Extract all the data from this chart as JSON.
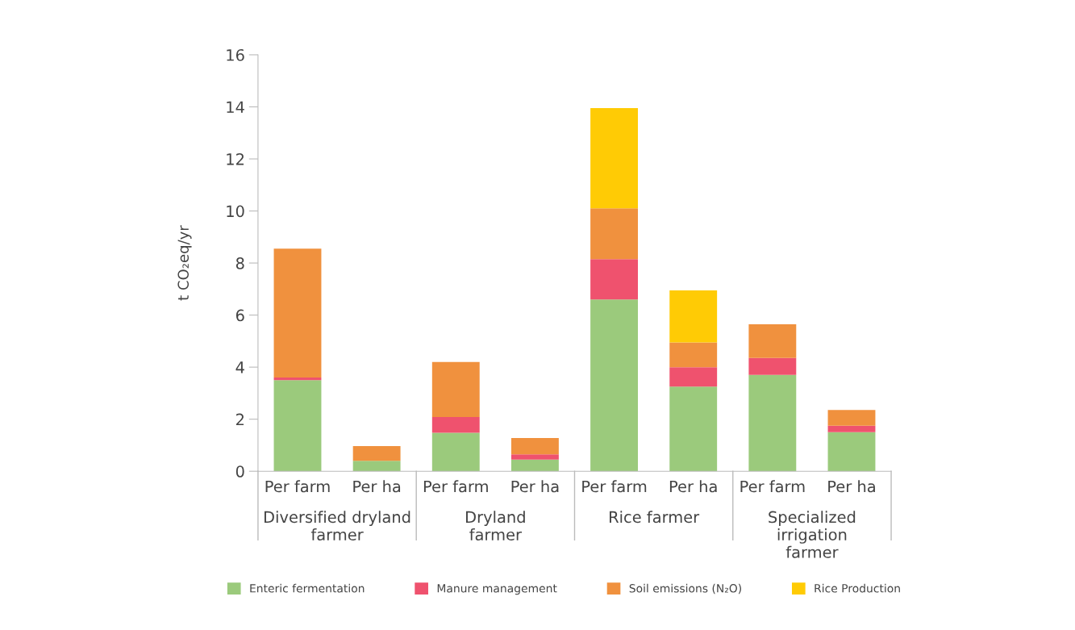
{
  "chart_data": {
    "type": "bar",
    "stacked": true,
    "ylabel": "t CO₂eq/yr",
    "categories": [
      "Per farm",
      "Per ha",
      "Per farm",
      "Per ha",
      "Per farm",
      "Per ha",
      "Per farm",
      "Per ha"
    ],
    "annotations": [
      "Diversified dryland\nfarmer",
      "Dryland\nfarmer",
      "Rice farmer",
      "Specialized\nirrigation\nfarmer"
    ],
    "series": [
      {
        "name": "Enteric fermentation",
        "color": "#9bca7c",
        "values": [
          3.5,
          0.4,
          1.48,
          0.45,
          6.6,
          3.25,
          3.7,
          1.5
        ]
      },
      {
        "name": "Manure management",
        "color": "#ef526e",
        "values": [
          0.1,
          0,
          0.6,
          0.2,
          1.55,
          0.75,
          0.65,
          0.25
        ]
      },
      {
        "name": "Soil emissions (N₂O)",
        "color": "#f0913e",
        "values": [
          4.95,
          0.57,
          2.12,
          0.63,
          1.95,
          0.95,
          1.3,
          0.6
        ]
      },
      {
        "name": "Rice Production",
        "color": "#ffcb05",
        "values": [
          0,
          0,
          0,
          0,
          3.85,
          2.0,
          0,
          0
        ]
      }
    ],
    "ylim": [
      0,
      16
    ],
    "yticks": [
      0,
      2,
      4,
      6,
      8,
      10,
      12,
      14,
      16
    ],
    "legend": "bottom"
  }
}
